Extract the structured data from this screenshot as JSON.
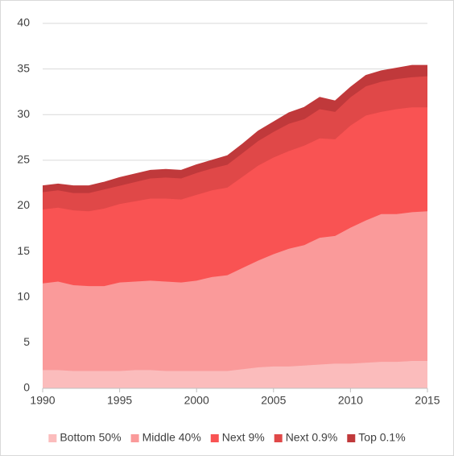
{
  "chart_data": {
    "type": "stacked_area",
    "x": [
      1990,
      1991,
      1992,
      1993,
      1994,
      1995,
      1996,
      1997,
      1998,
      1999,
      2000,
      2001,
      2002,
      2003,
      2004,
      2005,
      2006,
      2007,
      2008,
      2009,
      2010,
      2011,
      2012,
      2013,
      2014,
      2015
    ],
    "series": [
      {
        "name": "Bottom 50%",
        "color": "#fbbcbc",
        "values": [
          2.0,
          2.0,
          1.9,
          1.9,
          1.9,
          1.9,
          2.0,
          2.0,
          1.9,
          1.9,
          1.9,
          1.9,
          1.9,
          2.1,
          2.3,
          2.4,
          2.4,
          2.5,
          2.6,
          2.7,
          2.7,
          2.8,
          2.9,
          2.9,
          3.0,
          3.0
        ]
      },
      {
        "name": "Middle 40%",
        "color": "#fa9a9a",
        "values": [
          9.5,
          9.7,
          9.4,
          9.3,
          9.3,
          9.7,
          9.7,
          9.8,
          9.8,
          9.7,
          9.9,
          10.3,
          10.5,
          11.1,
          11.7,
          12.3,
          12.9,
          13.2,
          13.9,
          14.0,
          14.9,
          15.6,
          16.2,
          16.2,
          16.3,
          16.4
        ]
      },
      {
        "name": "Next 9%",
        "color": "#f95353",
        "values": [
          8.1,
          8.1,
          8.2,
          8.2,
          8.5,
          8.6,
          8.8,
          9.0,
          9.1,
          9.1,
          9.4,
          9.5,
          9.6,
          10.0,
          10.4,
          10.6,
          10.7,
          10.9,
          10.9,
          10.6,
          11.2,
          11.5,
          11.2,
          11.5,
          11.5,
          11.4
        ]
      },
      {
        "name": "Next 0.9%",
        "color": "#e04848",
        "values": [
          1.9,
          1.9,
          1.9,
          2.0,
          2.1,
          2.0,
          2.1,
          2.2,
          2.3,
          2.3,
          2.4,
          2.4,
          2.5,
          2.6,
          2.7,
          2.8,
          3.0,
          2.9,
          3.2,
          3.0,
          3.1,
          3.2,
          3.3,
          3.3,
          3.3,
          3.4
        ]
      },
      {
        "name": "Top 0.1%",
        "color": "#c0393b",
        "values": [
          0.7,
          0.7,
          0.8,
          0.8,
          0.8,
          0.9,
          0.9,
          0.9,
          0.9,
          0.9,
          0.9,
          0.9,
          1.0,
          1.0,
          1.1,
          1.1,
          1.2,
          1.3,
          1.3,
          1.2,
          1.1,
          1.2,
          1.2,
          1.2,
          1.3,
          1.2
        ]
      }
    ],
    "xlim": [
      1990,
      2015
    ],
    "xticks": [
      1990,
      1995,
      2000,
      2005,
      2010,
      2015
    ],
    "ylim": [
      0,
      40
    ],
    "yticks": [
      0,
      5,
      10,
      15,
      20,
      25,
      30,
      35,
      40
    ],
    "grid": true,
    "legend": "bottom"
  }
}
